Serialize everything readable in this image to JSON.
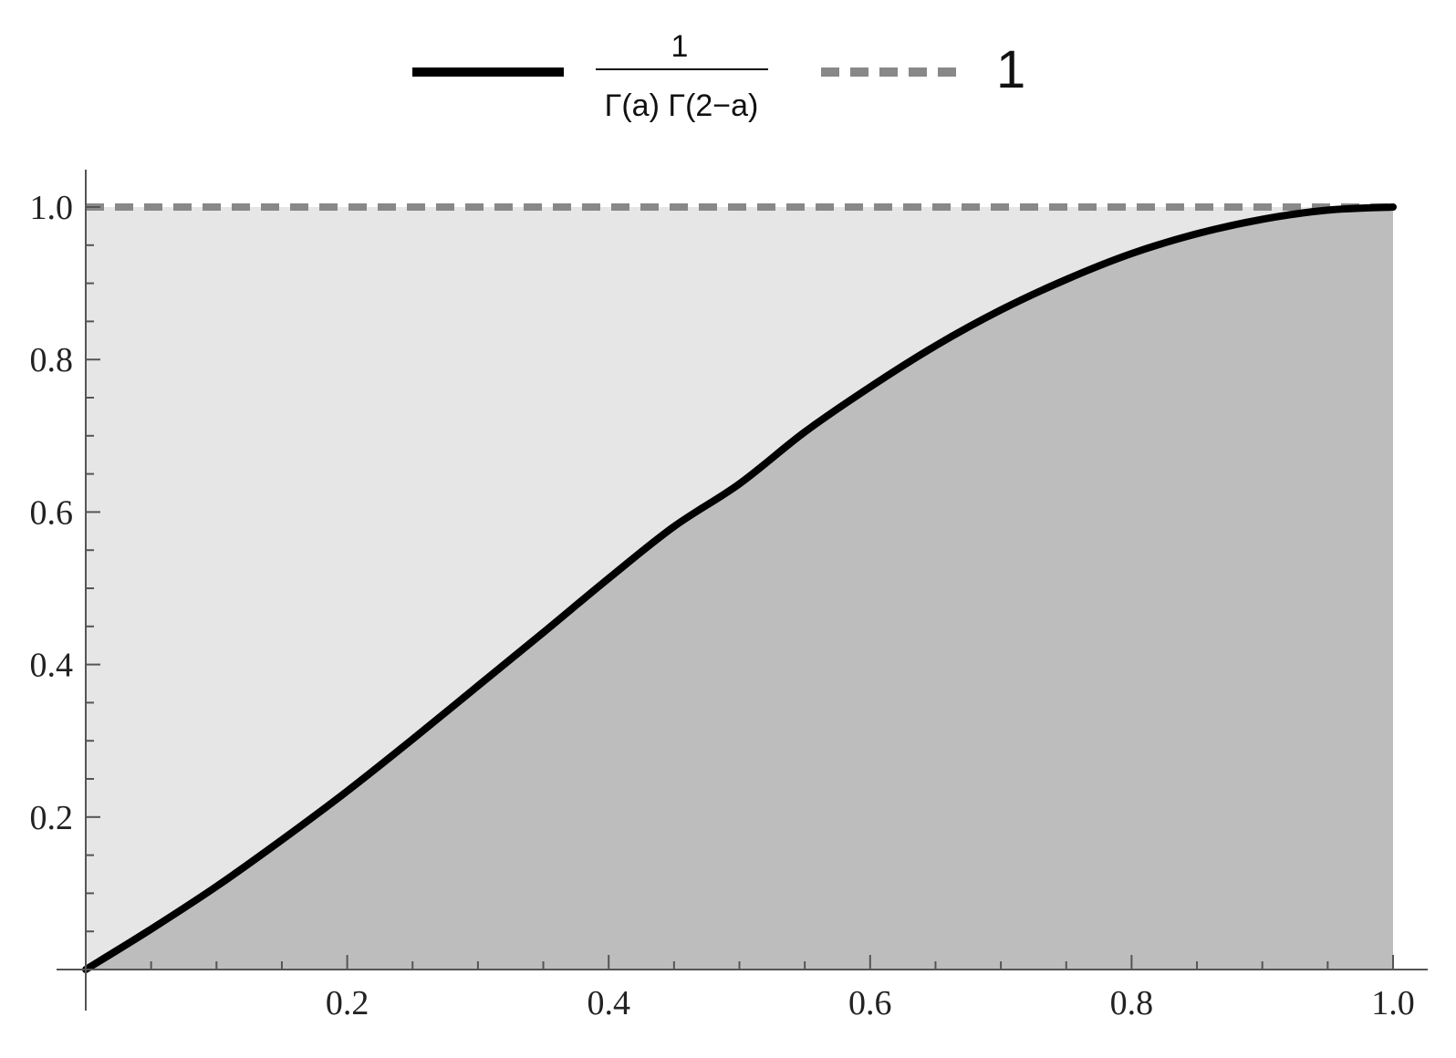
{
  "chart_data": {
    "type": "area",
    "title": "",
    "xlabel": "",
    "ylabel": "",
    "xlim": [
      0,
      1
    ],
    "ylim": [
      0,
      1
    ],
    "x_ticks": [
      0.2,
      0.4,
      0.6,
      0.8,
      1.0
    ],
    "x_tick_labels": [
      "0.2",
      "0.4",
      "0.6",
      "0.8",
      "1.0"
    ],
    "y_ticks": [
      0.2,
      0.4,
      0.6,
      0.8,
      1.0
    ],
    "y_tick_labels": [
      "0.2",
      "0.4",
      "0.6",
      "0.8",
      "1.0"
    ],
    "grid": false,
    "legend_position": "top-center",
    "series": [
      {
        "name": "1/(Γ(a) Γ(2−a))",
        "legend_numerator": "1",
        "legend_denominator": "Γ(a) Γ(2−a)",
        "style": "solid",
        "color": "#000000",
        "fill_color": "#bdbdbd",
        "x": [
          0,
          0.05,
          0.1,
          0.15,
          0.2,
          0.25,
          0.3,
          0.35,
          0.4,
          0.45,
          0.5,
          0.55,
          0.6,
          0.65,
          0.7,
          0.75,
          0.8,
          0.85,
          0.9,
          0.95,
          1.0
        ],
        "values": [
          0,
          0.053,
          0.109,
          0.17,
          0.234,
          0.302,
          0.372,
          0.442,
          0.513,
          0.581,
          0.637,
          0.705,
          0.764,
          0.818,
          0.865,
          0.905,
          0.939,
          0.965,
          0.984,
          0.996,
          1.0
        ]
      },
      {
        "name": "1",
        "style": "dashed",
        "color": "#888888",
        "fill_color": "#e6e6e6",
        "x": [
          0,
          1.0
        ],
        "values": [
          1,
          1
        ]
      }
    ]
  }
}
